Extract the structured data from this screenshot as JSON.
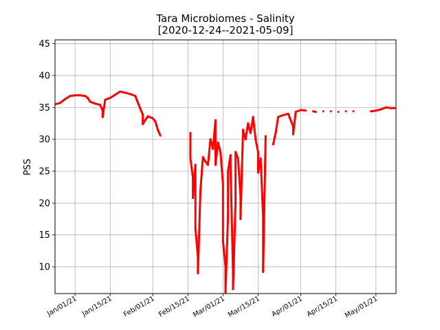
{
  "chart_data": {
    "type": "scatter",
    "title": "Tara Microbiomes - Salinity",
    "subtitle": "[2020-12-24--2021-05-09]",
    "xlabel": "",
    "ylabel": "PSS",
    "x_range": [
      "2020-12-24",
      "2021-05-09"
    ],
    "ylim": [
      5.8,
      45.6
    ],
    "yticks": [
      10,
      15,
      20,
      25,
      30,
      35,
      40,
      45
    ],
    "xticks": [
      {
        "date": "2021-01-01",
        "label": "Jan/01/21"
      },
      {
        "date": "2021-01-15",
        "label": "Jan/15/21"
      },
      {
        "date": "2021-02-01",
        "label": "Feb/01/21"
      },
      {
        "date": "2021-02-15",
        "label": "Feb/15/21"
      },
      {
        "date": "2021-03-01",
        "label": "Mar/01/21"
      },
      {
        "date": "2021-03-15",
        "label": "Mar/15/21"
      },
      {
        "date": "2021-04-01",
        "label": "Apr/01/21"
      },
      {
        "date": "2021-04-15",
        "label": "Apr/15/21"
      },
      {
        "date": "2021-05-01",
        "label": "May/01/21"
      }
    ],
    "grid": true,
    "marker_color": "#ff0000",
    "series": [
      {
        "points": [
          [
            "2020-12-24",
            35.5
          ],
          [
            "2020-12-26",
            35.7
          ],
          [
            "2020-12-28",
            36.3
          ],
          [
            "2020-12-30",
            36.8
          ],
          [
            "2021-01-01",
            36.9
          ],
          [
            "2021-01-03",
            36.9
          ],
          [
            "2021-01-05",
            36.8
          ],
          [
            "2021-01-06",
            36.5
          ],
          [
            "2021-01-07",
            35.9
          ],
          [
            "2021-01-09",
            35.6
          ],
          [
            "2021-01-11",
            35.4
          ],
          [
            "2021-01-12",
            34.5
          ],
          [
            "2021-01-12",
            33.5
          ],
          [
            "2021-01-13",
            36.2
          ],
          [
            "2021-01-15",
            36.5
          ],
          [
            "2021-01-17",
            37.0
          ],
          [
            "2021-01-19",
            37.5
          ],
          [
            "2021-01-21",
            37.3
          ],
          [
            "2021-01-23",
            37.1
          ],
          [
            "2021-01-25",
            36.8
          ],
          [
            "2021-01-26",
            35.8
          ],
          [
            "2021-01-27",
            34.8
          ],
          [
            "2021-01-28",
            33.9
          ],
          [
            "2021-01-28",
            32.4
          ],
          [
            "2021-01-30",
            33.6
          ],
          [
            "2021-02-01",
            33.3
          ],
          [
            "2021-02-02",
            32.8
          ],
          [
            "2021-02-03",
            31.5
          ],
          [
            "2021-02-04",
            30.6
          ],
          [
            "2021-02-16",
            31.0
          ],
          [
            "2021-02-16",
            27.0
          ],
          [
            "2021-02-17",
            24.0
          ],
          [
            "2021-02-17",
            20.8
          ],
          [
            "2021-02-18",
            26.0
          ],
          [
            "2021-02-18",
            16.0
          ],
          [
            "2021-02-19",
            11.5
          ],
          [
            "2021-02-19",
            9.0
          ],
          [
            "2021-02-20",
            22.0
          ],
          [
            "2021-02-21",
            27.2
          ],
          [
            "2021-02-22",
            26.5
          ],
          [
            "2021-02-23",
            26.0
          ],
          [
            "2021-02-24",
            30.0
          ],
          [
            "2021-02-25",
            28.5
          ],
          [
            "2021-02-26",
            33.0
          ],
          [
            "2021-02-26",
            26.0
          ],
          [
            "2021-02-27",
            29.5
          ],
          [
            "2021-02-28",
            28.0
          ],
          [
            "2021-03-01",
            23.0
          ],
          [
            "2021-03-01",
            14.0
          ],
          [
            "2021-03-02",
            10.0
          ],
          [
            "2021-03-02",
            6.0
          ],
          [
            "2021-03-03",
            18.0
          ],
          [
            "2021-03-03",
            25.0
          ],
          [
            "2021-03-04",
            27.5
          ],
          [
            "2021-03-04",
            26.0
          ],
          [
            "2021-03-05",
            9.0
          ],
          [
            "2021-03-05",
            6.5
          ],
          [
            "2021-03-06",
            20.0
          ],
          [
            "2021-03-06",
            28.0
          ],
          [
            "2021-03-07",
            27.0
          ],
          [
            "2021-03-08",
            21.0
          ],
          [
            "2021-03-08",
            17.5
          ],
          [
            "2021-03-09",
            31.5
          ],
          [
            "2021-03-10",
            30.0
          ],
          [
            "2021-03-11",
            32.5
          ],
          [
            "2021-03-12",
            31.0
          ],
          [
            "2021-03-13",
            33.5
          ],
          [
            "2021-03-14",
            30.0
          ],
          [
            "2021-03-15",
            28.0
          ],
          [
            "2021-03-15",
            24.8
          ],
          [
            "2021-03-16",
            27.0
          ],
          [
            "2021-03-17",
            18.0
          ],
          [
            "2021-03-17",
            9.2
          ],
          [
            "2021-03-18",
            30.5
          ],
          [
            "2021-03-21",
            29.2
          ],
          [
            "2021-03-22",
            31.0
          ],
          [
            "2021-03-23",
            33.5
          ],
          [
            "2021-03-25",
            33.8
          ],
          [
            "2021-03-27",
            34.0
          ],
          [
            "2021-03-29",
            32.0
          ],
          [
            "2021-03-29",
            30.8
          ],
          [
            "2021-03-30",
            34.3
          ],
          [
            "2021-04-01",
            34.6
          ],
          [
            "2021-04-03",
            34.5
          ],
          [
            "2021-04-06",
            34.4
          ],
          [
            "2021-04-07",
            34.3
          ],
          [
            "2021-04-10",
            34.4
          ],
          [
            "2021-04-13",
            34.4
          ],
          [
            "2021-04-16",
            34.3
          ],
          [
            "2021-04-19",
            34.4
          ],
          [
            "2021-04-22",
            34.4
          ],
          [
            "2021-04-29",
            34.4
          ],
          [
            "2021-05-01",
            34.5
          ],
          [
            "2021-05-03",
            34.7
          ],
          [
            "2021-05-05",
            35.0
          ],
          [
            "2021-05-07",
            34.9
          ],
          [
            "2021-05-09",
            34.9
          ]
        ]
      }
    ]
  }
}
